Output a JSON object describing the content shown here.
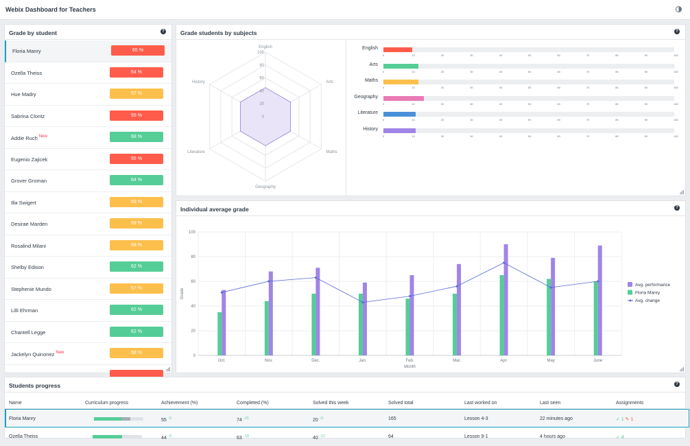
{
  "app": {
    "title": "Webix Dashboard for Teachers",
    "theme_icon": "half-circle-icon"
  },
  "grade_panel": {
    "title": "Grade by student",
    "students": [
      {
        "name": "Floria Manry",
        "grade": "65 %",
        "color": "#ff5c4c",
        "new": ""
      },
      {
        "name": "Ozella Theiss",
        "grade": "54 %",
        "color": "#ff5c4c",
        "new": ""
      },
      {
        "name": "Hue Madry",
        "grade": "57 %",
        "color": "#fdbf4c",
        "new": ""
      },
      {
        "name": "Sabrina Clontz",
        "grade": "55 %",
        "color": "#ff5c4c",
        "new": ""
      },
      {
        "name": "Addie Ruch",
        "grade": "68 %",
        "color": "#55cd97",
        "new": "New"
      },
      {
        "name": "Eugenio Zajicek",
        "grade": "55 %",
        "color": "#ff5c4c",
        "new": ""
      },
      {
        "name": "Grover Groman",
        "grade": "64 %",
        "color": "#55cd97",
        "new": ""
      },
      {
        "name": "Illa Swigert",
        "grade": "59 %",
        "color": "#fdbf4c",
        "new": ""
      },
      {
        "name": "Desirae Marden",
        "grade": "59 %",
        "color": "#fdbf4c",
        "new": ""
      },
      {
        "name": "Rosalind Milani",
        "grade": "58 %",
        "color": "#fdbf4c",
        "new": ""
      },
      {
        "name": "Shelby Edison",
        "grade": "62 %",
        "color": "#55cd97",
        "new": ""
      },
      {
        "name": "Stephenie Mundo",
        "grade": "57 %",
        "color": "#fdbf4c",
        "new": ""
      },
      {
        "name": "Lilli Ehrman",
        "grade": "62 %",
        "color": "#55cd97",
        "new": ""
      },
      {
        "name": "Chantell Legge",
        "grade": "62 %",
        "color": "#55cd97",
        "new": ""
      },
      {
        "name": "Jackelyn Quinonez",
        "grade": "58 %",
        "color": "#fdbf4c",
        "new": "New"
      },
      {
        "name": "",
        "grade": "",
        "color": "#ff5c4c",
        "new": ""
      }
    ]
  },
  "subjects_panel": {
    "title": "Grade students by subjects",
    "radar": {
      "axes": [
        "English",
        "Arts",
        "Maths",
        "Geography",
        "Literature",
        "History"
      ],
      "scale": [
        "0",
        "20",
        "40",
        "60",
        "80",
        "100"
      ],
      "max": 100,
      "values": [
        45,
        45,
        45,
        45,
        45,
        45
      ],
      "fill": "#e9e4f8",
      "stroke": "#8f7fd9"
    },
    "bars": {
      "ticks": [
        "0",
        "10",
        "20",
        "30",
        "40",
        "50",
        "60",
        "70",
        "80",
        "90",
        "100"
      ],
      "max": 100,
      "items": [
        {
          "label": "English",
          "value": 10,
          "color": "#ff5c4c"
        },
        {
          "label": "Arts",
          "value": 12,
          "color": "#55cd97"
        },
        {
          "label": "Maths",
          "value": 12,
          "color": "#fdbf4c"
        },
        {
          "label": "Geography",
          "value": 14,
          "color": "#e87bb3"
        },
        {
          "label": "Literature",
          "value": 11,
          "color": "#4a90d9"
        },
        {
          "label": "History",
          "value": 11,
          "color": "#a085e6"
        }
      ]
    }
  },
  "avg_panel": {
    "title": "Individual average grade",
    "chart_data": {
      "type": "bar",
      "categories": [
        "Oct.",
        "Nov.",
        "Dec.",
        "Jan.",
        "Feb.",
        "Mar.",
        "Apr.",
        "May",
        "June"
      ],
      "xlabel": "Month",
      "ylabel": "Grade",
      "ylim": [
        0,
        100
      ],
      "yticks": [
        "0",
        "20",
        "40",
        "60",
        "80",
        "100"
      ],
      "grid": true,
      "legend": "right",
      "series": [
        {
          "name": "Floria Manry",
          "type": "bar",
          "color": "#55cd97",
          "values": [
            35,
            44,
            50,
            50,
            46,
            50,
            65,
            62,
            60
          ]
        },
        {
          "name": "Avg. performance",
          "type": "bar",
          "color": "#a085e6",
          "values": [
            53,
            68,
            71,
            59,
            65,
            74,
            90,
            79,
            89
          ]
        },
        {
          "name": "Avg. change",
          "type": "line",
          "color": "#5a68d6",
          "values": [
            51,
            60,
            63,
            43,
            48,
            56,
            75,
            55,
            60
          ]
        }
      ],
      "legend_order": [
        "Avg. performance",
        "Floria Manry",
        "Avg. change"
      ]
    }
  },
  "progress_panel": {
    "title": "Students progress",
    "columns": [
      "Name",
      "Curriculum progress",
      "Achievement (%)",
      "Completed (%)",
      "Solved this week",
      "Solved total",
      "Last worked on",
      "Last seen",
      "Assignments"
    ],
    "rows": [
      {
        "name": "Floria Manry",
        "progress_done": 0.55,
        "progress_partial": 0.18,
        "achievement": "55",
        "ach_delta": "5",
        "completed": "74",
        "comp_delta": "21",
        "solved_week": "20",
        "week_delta": "6",
        "solved_total": "165",
        "last_worked": "Lesson 4-3",
        "last_seen": "22 minutes ago",
        "assign_done": "1",
        "assign_pending": "1"
      },
      {
        "name": "Ozella Theiss",
        "progress_done": 0.6,
        "progress_partial": 0.0,
        "achievement": "44",
        "ach_delta": "8",
        "completed": "63",
        "comp_delta": "18",
        "solved_week": "40",
        "week_delta": "12",
        "solved_total": "64",
        "last_worked": "Lesson 9-1",
        "last_seen": "4 hours ago",
        "assign_done": "4",
        "assign_pending": ""
      }
    ]
  }
}
